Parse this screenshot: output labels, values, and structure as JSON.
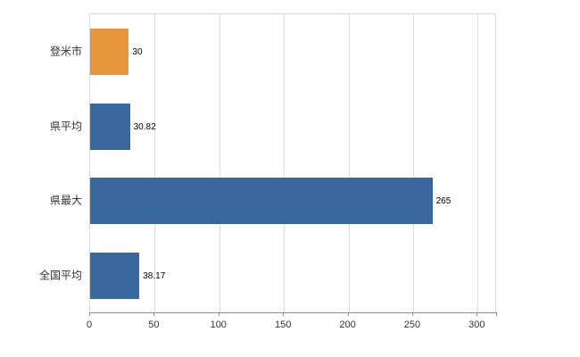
{
  "chart_data": {
    "type": "bar",
    "orientation": "horizontal",
    "title": "",
    "xlabel": "",
    "ylabel": "",
    "categories": [
      "登米市",
      "県平均",
      "県最大",
      "全国平均"
    ],
    "values": [
      30,
      30.82,
      265,
      38.17
    ],
    "value_labels": [
      "30",
      "30.82",
      "265",
      "38.17"
    ],
    "bar_colors": [
      "#E8963C",
      "#3A679E",
      "#3A679E",
      "#3A679E"
    ],
    "xlim": [
      0,
      315
    ],
    "xticks": [
      0,
      50,
      100,
      150,
      200,
      250,
      300
    ],
    "grid": true,
    "legend": false,
    "grid_color": "#dcdcdc",
    "axis_color": "#8f8f8f"
  }
}
